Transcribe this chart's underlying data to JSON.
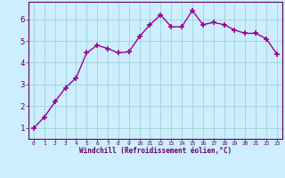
{
  "x": [
    0,
    1,
    2,
    3,
    4,
    5,
    6,
    7,
    8,
    9,
    10,
    11,
    12,
    13,
    14,
    15,
    16,
    17,
    18,
    19,
    20,
    21,
    22,
    23
  ],
  "y": [
    1.0,
    1.5,
    2.2,
    2.85,
    3.3,
    4.45,
    4.8,
    4.65,
    4.45,
    4.5,
    5.2,
    5.75,
    6.2,
    5.65,
    5.65,
    6.4,
    5.75,
    5.85,
    5.75,
    5.5,
    5.35,
    5.35,
    5.1,
    4.4
  ],
  "line_color": "#990099",
  "marker": "+",
  "background_color": "#cceeff",
  "grid_color": "#99cccc",
  "xlabel": "Windchill (Refroidissement éolien,°C)",
  "ylabel": "",
  "xlim": [
    -0.5,
    23.5
  ],
  "ylim": [
    0.5,
    6.8
  ],
  "yticks": [
    1,
    2,
    3,
    4,
    5,
    6
  ],
  "xticks": [
    0,
    1,
    2,
    3,
    4,
    5,
    6,
    7,
    8,
    9,
    10,
    11,
    12,
    13,
    14,
    15,
    16,
    17,
    18,
    19,
    20,
    21,
    22,
    23
  ],
  "label_color": "#660066",
  "tick_color": "#660066",
  "grid_linewidth": 0.5,
  "line_width": 1.0,
  "marker_size": 4
}
